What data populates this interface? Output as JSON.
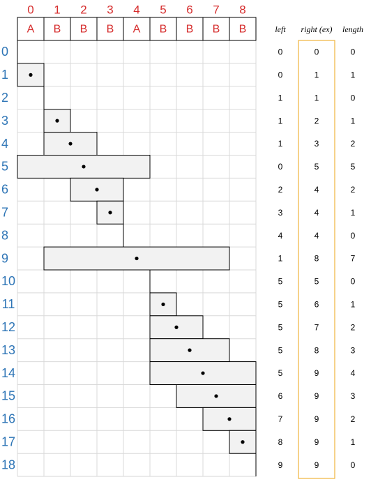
{
  "columns": [
    "0",
    "1",
    "2",
    "3",
    "4",
    "5",
    "6",
    "7",
    "8"
  ],
  "letters": [
    "A",
    "B",
    "B",
    "B",
    "A",
    "B",
    "B",
    "B",
    "B"
  ],
  "rows": [
    "0",
    "1",
    "2",
    "3",
    "4",
    "5",
    "6",
    "7",
    "8",
    "9",
    "10",
    "11",
    "12",
    "13",
    "14",
    "15",
    "16",
    "17",
    "18"
  ],
  "headers": {
    "left": "left",
    "right": "right (ex)",
    "length": "length"
  },
  "table": [
    {
      "left": 0,
      "right": 0,
      "length": 0
    },
    {
      "left": 0,
      "right": 1,
      "length": 1
    },
    {
      "left": 1,
      "right": 1,
      "length": 0
    },
    {
      "left": 1,
      "right": 2,
      "length": 1
    },
    {
      "left": 1,
      "right": 3,
      "length": 2
    },
    {
      "left": 0,
      "right": 5,
      "length": 5
    },
    {
      "left": 2,
      "right": 4,
      "length": 2
    },
    {
      "left": 3,
      "right": 4,
      "length": 1
    },
    {
      "left": 4,
      "right": 4,
      "length": 0
    },
    {
      "left": 1,
      "right": 8,
      "length": 7
    },
    {
      "left": 5,
      "right": 5,
      "length": 0
    },
    {
      "left": 5,
      "right": 6,
      "length": 1
    },
    {
      "left": 5,
      "right": 7,
      "length": 2
    },
    {
      "left": 5,
      "right": 8,
      "length": 3
    },
    {
      "left": 5,
      "right": 9,
      "length": 4
    },
    {
      "left": 6,
      "right": 9,
      "length": 3
    },
    {
      "left": 7,
      "right": 9,
      "length": 2
    },
    {
      "left": 8,
      "right": 9,
      "length": 1
    },
    {
      "left": 9,
      "right": 9,
      "length": 0
    }
  ],
  "colors": {
    "letter_red": "#d62d2d",
    "row_blue": "#2e75b6",
    "highlight_orange": "#f0b43c",
    "interval_fill": "#f2f2f2"
  }
}
